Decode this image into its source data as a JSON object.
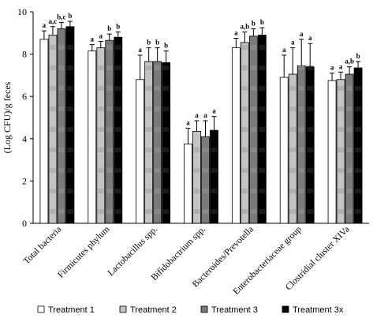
{
  "chart_data": {
    "type": "bar",
    "ylabel": "(Log CFU)/g feces",
    "ylim": [
      0,
      10
    ],
    "yticks": [
      0,
      2,
      4,
      6,
      8,
      10
    ],
    "grid": false,
    "legend_position": "bottom",
    "categories": [
      "Total bacteria",
      "Firmicutes phylum",
      "Lactobacillus spp.",
      "Bifidobactrium spp.",
      "Bacteroides/Prevotella",
      "Enterobacteriaceae group",
      "Clostridial cluster XIVa"
    ],
    "series": [
      {
        "name": "Treatment 1",
        "color": "#ffffff",
        "values": [
          8.7,
          8.15,
          6.8,
          3.75,
          8.3,
          6.9,
          6.75
        ],
        "errors": [
          0.4,
          0.3,
          1.15,
          0.75,
          0.45,
          1.05,
          0.35
        ],
        "sig": [
          "a",
          "a",
          "a",
          "a",
          "a",
          "a",
          "a"
        ]
      },
      {
        "name": "Treatment 2",
        "color": "#c4c4c4",
        "values": [
          8.9,
          8.3,
          7.65,
          4.35,
          8.55,
          7.05,
          6.8
        ],
        "errors": [
          0.4,
          0.3,
          0.65,
          0.5,
          0.5,
          1.25,
          0.35
        ],
        "sig": [
          "a,c",
          "a",
          "b",
          "a",
          "a,b",
          "a",
          "a"
        ]
      },
      {
        "name": "Treatment 3",
        "color": "#7a7a7a",
        "values": [
          9.2,
          8.65,
          7.65,
          4.1,
          8.85,
          7.45,
          7.05
        ],
        "errors": [
          0.3,
          0.3,
          0.65,
          0.75,
          0.35,
          1.25,
          0.35
        ],
        "sig": [
          "b,c",
          "b",
          "b",
          "a",
          "b",
          "a",
          "a,b"
        ]
      },
      {
        "name": "Treatment 3x",
        "color": "#000000",
        "values": [
          9.3,
          8.8,
          7.6,
          4.4,
          8.9,
          7.4,
          7.35
        ],
        "errors": [
          0.25,
          0.25,
          0.55,
          0.65,
          0.35,
          1.1,
          0.3
        ],
        "sig": [
          "b",
          "b",
          "b",
          "a",
          "b",
          "a",
          "b"
        ]
      }
    ]
  }
}
